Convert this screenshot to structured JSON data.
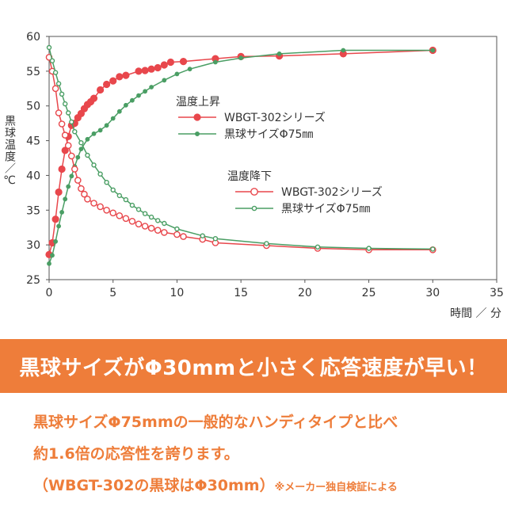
{
  "chart_data": {
    "type": "line",
    "title": "",
    "xlabel": "時間 ／ 分",
    "ylabel": "黒球温度／℃",
    "xlim": [
      0,
      35
    ],
    "ylim": [
      25,
      60
    ],
    "x_ticks": [
      0,
      5,
      10,
      15,
      20,
      25,
      30,
      35
    ],
    "y_ticks": [
      25,
      30,
      35,
      40,
      45,
      50,
      55,
      60
    ],
    "grid": false,
    "legend_groups": [
      {
        "title": "温度上昇",
        "entries": [
          "WBGT-302シリーズ",
          "黒球サイズΦ75㎜"
        ]
      },
      {
        "title": "温度降下",
        "entries": [
          "WBGT-302シリーズ",
          "黒球サイズΦ75㎜"
        ]
      }
    ],
    "series": [
      {
        "name": "WBGT-302シリーズ",
        "group": "温度上昇",
        "color": "#e8474c",
        "marker": "filled-large",
        "x": [
          0,
          0.25,
          0.5,
          0.75,
          1,
          1.25,
          1.5,
          1.75,
          2,
          2.25,
          2.5,
          2.75,
          3,
          3.25,
          3.5,
          4,
          4.5,
          5,
          5.5,
          6,
          7,
          7.5,
          8,
          8.5,
          9,
          9.5,
          10.5,
          13,
          15,
          18,
          23,
          30
        ],
        "y": [
          28.6,
          30.3,
          33.7,
          37.6,
          40.9,
          43.6,
          45.6,
          47.2,
          47.5,
          48.3,
          48.9,
          49.6,
          50.2,
          50.6,
          51.1,
          52.3,
          53.1,
          53.6,
          54.2,
          54.4,
          55.0,
          55.1,
          55.3,
          55.5,
          55.9,
          56.3,
          56.4,
          56.8,
          57.1,
          57.2,
          57.5,
          58.0
        ]
      },
      {
        "name": "黒球サイズΦ75㎜",
        "group": "温度上昇",
        "color": "#4a9e64",
        "marker": "filled-small",
        "x": [
          0,
          0.25,
          0.5,
          0.75,
          1,
          1.25,
          1.5,
          1.75,
          2,
          2.25,
          2.5,
          3,
          3.5,
          4,
          4.5,
          5,
          5.5,
          6,
          6.5,
          7,
          7.5,
          8,
          9,
          10,
          11,
          13,
          15,
          18,
          23,
          30
        ],
        "y": [
          27.3,
          28.5,
          30.5,
          32.7,
          34.7,
          36.6,
          38.4,
          39.9,
          41.3,
          42.6,
          43.8,
          45.2,
          46.0,
          46.5,
          47.2,
          48.2,
          49.2,
          50.1,
          50.8,
          51.5,
          52.1,
          52.7,
          53.7,
          54.6,
          55.3,
          56.3,
          56.9,
          57.5,
          58.0,
          58.0
        ]
      },
      {
        "name": "WBGT-302シリーズ",
        "group": "温度降下",
        "color": "#e8474c",
        "marker": "open-large",
        "x": [
          0,
          0.25,
          0.5,
          0.75,
          1,
          1.25,
          1.5,
          1.75,
          2,
          2.25,
          2.5,
          2.75,
          3,
          3.5,
          4,
          4.5,
          5,
          5.5,
          6,
          6.5,
          7,
          7.5,
          8,
          8.5,
          9,
          10,
          10.5,
          12,
          13,
          17,
          21,
          25,
          30
        ],
        "y": [
          57.0,
          55.0,
          52.5,
          49.0,
          47.4,
          45.8,
          44.3,
          42.8,
          40.9,
          39.3,
          38.1,
          37.3,
          36.6,
          36.0,
          35.5,
          35.0,
          34.6,
          34.2,
          33.8,
          33.4,
          33.0,
          32.7,
          32.4,
          32.1,
          31.8,
          31.5,
          31.2,
          30.8,
          30.3,
          29.9,
          29.5,
          29.3,
          29.3
        ]
      },
      {
        "name": "黒球サイズΦ75㎜",
        "group": "温度降下",
        "color": "#4a9e64",
        "marker": "open-small",
        "x": [
          0,
          0.25,
          0.5,
          0.75,
          1,
          1.25,
          1.5,
          1.75,
          2,
          2.5,
          3,
          3.5,
          4,
          4.5,
          5,
          5.5,
          6,
          6.5,
          7,
          7.5,
          8,
          8.5,
          9,
          10,
          12,
          13,
          17,
          21,
          25,
          30
        ],
        "y": [
          58.4,
          56.5,
          54.8,
          53.2,
          51.7,
          50.3,
          49.0,
          47.7,
          46.3,
          44.7,
          42.9,
          41.5,
          40.2,
          39.0,
          37.9,
          37.1,
          36.5,
          35.7,
          35.1,
          34.5,
          34.0,
          33.5,
          33.1,
          32.3,
          31.3,
          30.9,
          30.2,
          29.7,
          29.5,
          29.4
        ]
      }
    ]
  },
  "banner": {
    "text": "黒球サイズがΦ30mmと小さく応答速度が早い！"
  },
  "description": {
    "line1": "黒球サイズΦ75mmの一般的なハンディタイプと比べ",
    "line2": "約1.6倍の応答性を誇ります。",
    "line3_main": "（WBGT-302の黒球はΦ30mm）",
    "line3_note": "※メーカー独自検証による"
  }
}
